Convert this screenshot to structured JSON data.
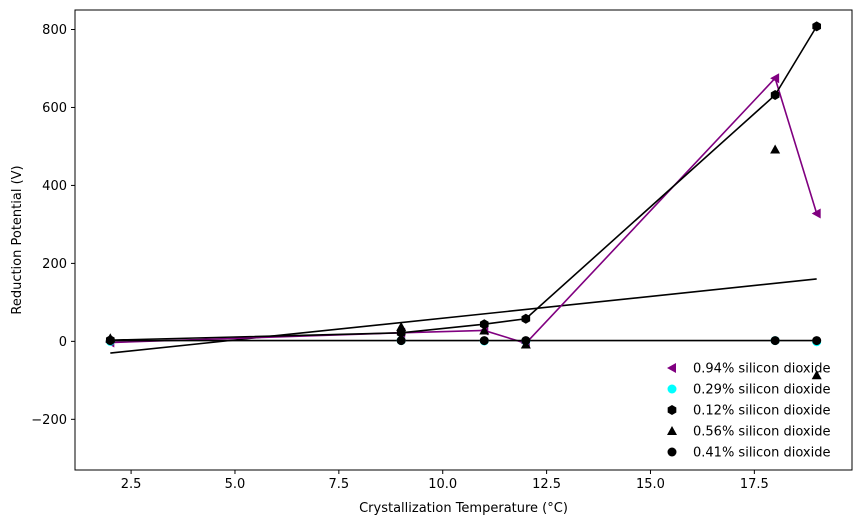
{
  "chart_data": {
    "type": "scatter",
    "title": "",
    "xlabel": "Crystallization Temperature (°C)",
    "ylabel": "Reduction Potential (V)",
    "xlim": [
      1.15,
      19.85
    ],
    "ylim": [
      -330,
      850
    ],
    "x_ticks": [
      2.5,
      5.0,
      7.5,
      10.0,
      12.5,
      15.0,
      17.5
    ],
    "x_tick_labels": [
      "2.5",
      "5.0",
      "7.5",
      "10.0",
      "12.5",
      "15.0",
      "17.5"
    ],
    "y_ticks": [
      -200,
      0,
      200,
      400,
      600,
      800
    ],
    "y_tick_labels": [
      "−200",
      "0",
      "200",
      "400",
      "600",
      "800"
    ],
    "grid": false,
    "legend_position": "lower-right",
    "series": [
      {
        "name": "0.94% silicon dioxide",
        "color": "#800080",
        "marker": "triangle-left",
        "connected": true,
        "x": [
          2,
          9,
          11,
          12,
          18,
          19
        ],
        "y": [
          -3,
          22,
          28,
          -5,
          675,
          328
        ]
      },
      {
        "name": "0.29% silicon dioxide",
        "color": "#00ffff",
        "marker": "circle",
        "connected": false,
        "x": [
          2,
          9,
          11,
          12,
          18,
          19
        ],
        "y": [
          0,
          2,
          1,
          1,
          2,
          -1
        ]
      },
      {
        "name": "0.12% silicon dioxide",
        "color": "#000000",
        "marker": "hexagon",
        "connected": true,
        "x": [
          2,
          9,
          11,
          12,
          18,
          19
        ],
        "y": [
          3,
          22,
          44,
          58,
          632,
          808
        ]
      },
      {
        "name": "0.56% silicon dioxide",
        "color": "#000000",
        "marker": "triangle-up",
        "connected": false,
        "x": [
          2,
          9,
          11,
          12,
          18,
          19
        ],
        "y": [
          8,
          37,
          28,
          -8,
          492,
          -87
        ]
      },
      {
        "name": "0.41% silicon dioxide",
        "color": "#000000",
        "marker": "circle",
        "connected": true,
        "x": [
          2,
          9,
          11,
          12,
          18,
          19
        ],
        "y": [
          2,
          2,
          2,
          2,
          2,
          2
        ]
      }
    ],
    "trend_lines": [
      {
        "color": "#000000",
        "x": [
          2,
          19
        ],
        "y": [
          -30,
          160
        ]
      }
    ]
  }
}
